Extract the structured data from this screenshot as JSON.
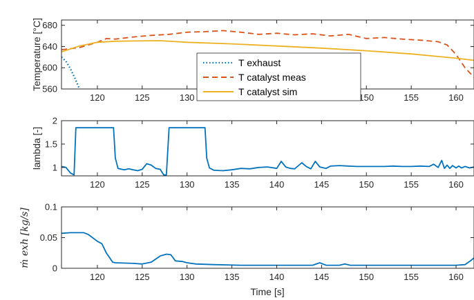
{
  "chart_data": [
    {
      "type": "line",
      "ylabel": "Temperature [°C]",
      "xlim": [
        116,
        162
      ],
      "ylim": [
        560,
        690
      ],
      "xticks": [
        120,
        125,
        130,
        135,
        140,
        145,
        150,
        155,
        160
      ],
      "yticks": [
        560,
        600,
        640,
        680
      ],
      "legend_position": "bottom-center",
      "series": [
        {
          "name": "T exhaust",
          "color": "#0072BD",
          "style": "dotted",
          "points": [
            [
              116,
              620
            ],
            [
              116.5,
              612
            ],
            [
              117,
              598
            ],
            [
              117.5,
              580
            ],
            [
              118,
              560
            ]
          ]
        },
        {
          "name": "T catalyst meas",
          "color": "#D95319",
          "style": "dashed",
          "points": [
            [
              116,
              634
            ],
            [
              118,
              638
            ],
            [
              120,
              648
            ],
            [
              121,
              655
            ],
            [
              122,
              654
            ],
            [
              124,
              658
            ],
            [
              126,
              661
            ],
            [
              128,
              663
            ],
            [
              130,
              667
            ],
            [
              132,
              668
            ],
            [
              134,
              670
            ],
            [
              136,
              667
            ],
            [
              138,
              663
            ],
            [
              140,
              665
            ],
            [
              142,
              662
            ],
            [
              144,
              664
            ],
            [
              146,
              660
            ],
            [
              148,
              663
            ],
            [
              150,
              655
            ],
            [
              152,
              657
            ],
            [
              154,
              654
            ],
            [
              156,
              652
            ],
            [
              158,
              649
            ],
            [
              159,
              643
            ],
            [
              160,
              625
            ],
            [
              161,
              600
            ],
            [
              162,
              582
            ]
          ]
        },
        {
          "name": "T catalyst sim",
          "color": "#EDB120",
          "style": "solid",
          "points": [
            [
              116,
              630
            ],
            [
              118,
              641
            ],
            [
              120,
              648
            ],
            [
              122,
              650
            ],
            [
              124,
              650.5
            ],
            [
              127,
              651
            ],
            [
              130,
              648
            ],
            [
              135,
              645
            ],
            [
              140,
              641
            ],
            [
              145,
              637
            ],
            [
              150,
              632
            ],
            [
              155,
              626
            ],
            [
              160,
              618
            ],
            [
              162,
              614
            ]
          ]
        }
      ]
    },
    {
      "type": "line",
      "ylabel": "lambda [-]",
      "xlim": [
        116,
        162
      ],
      "ylim": [
        0.82,
        2
      ],
      "xticks": [
        120,
        125,
        130,
        135,
        140,
        145,
        150,
        155,
        160
      ],
      "yticks": [
        1,
        1.5,
        2
      ],
      "series": [
        {
          "color": "#0072BD",
          "style": "solid",
          "points": [
            [
              116,
              1.02
            ],
            [
              116.5,
              1.0
            ],
            [
              117,
              0.88
            ],
            [
              117.4,
              0.84
            ],
            [
              117.6,
              1.85
            ],
            [
              120,
              1.85
            ],
            [
              121.8,
              1.85
            ],
            [
              122,
              1.2
            ],
            [
              122.3,
              0.98
            ],
            [
              123,
              0.95
            ],
            [
              123.5,
              0.97
            ],
            [
              124,
              0.95
            ],
            [
              124.5,
              0.93
            ],
            [
              125,
              0.96
            ],
            [
              125.5,
              1.08
            ],
            [
              126,
              1.05
            ],
            [
              126.5,
              0.98
            ],
            [
              127,
              0.96
            ],
            [
              127.4,
              0.84
            ],
            [
              127.7,
              0.84
            ],
            [
              128,
              1.85
            ],
            [
              132,
              1.85
            ],
            [
              132.2,
              1.2
            ],
            [
              132.5,
              0.99
            ],
            [
              133,
              0.94
            ],
            [
              134,
              0.93
            ],
            [
              135,
              0.95
            ],
            [
              136,
              0.98
            ],
            [
              137,
              0.97
            ],
            [
              138,
              1.0
            ],
            [
              139,
              1.01
            ],
            [
              140,
              0.98
            ],
            [
              140.5,
              1.13
            ],
            [
              141,
              1.01
            ],
            [
              141.5,
              0.98
            ],
            [
              142,
              0.97
            ],
            [
              142.8,
              1.1
            ],
            [
              143.3,
              1.02
            ],
            [
              143.8,
              0.97
            ],
            [
              144.3,
              1.13
            ],
            [
              144.8,
              1.01
            ],
            [
              145.5,
              0.98
            ],
            [
              146,
              1.03
            ],
            [
              147,
              1.04
            ],
            [
              148,
              1.03
            ],
            [
              149,
              1.02
            ],
            [
              150,
              1.02
            ],
            [
              151,
              1.02
            ],
            [
              152,
              1.02
            ],
            [
              153,
              1.03
            ],
            [
              154,
              1.02
            ],
            [
              155,
              1.02
            ],
            [
              156,
              1.03
            ],
            [
              157,
              1.02
            ],
            [
              157.5,
              1.07
            ],
            [
              158,
              1.0
            ],
            [
              158.4,
              1.15
            ],
            [
              158.7,
              0.98
            ],
            [
              159,
              1.05
            ],
            [
              159.3,
              0.98
            ],
            [
              159.6,
              1.04
            ],
            [
              160,
              0.99
            ],
            [
              160.3,
              1.03
            ],
            [
              160.6,
              0.99
            ],
            [
              161,
              1.02
            ],
            [
              161.5,
              0.99
            ],
            [
              162,
              1.01
            ]
          ]
        }
      ]
    },
    {
      "type": "line",
      "ylabel": "ṁ exh [kg/s]",
      "xlabel": "Time [s]",
      "xlim": [
        116,
        162
      ],
      "ylim": [
        0,
        0.1
      ],
      "xticks": [
        120,
        125,
        130,
        135,
        140,
        145,
        150,
        155,
        160
      ],
      "yticks": [
        0,
        0.05,
        0.1
      ],
      "series": [
        {
          "color": "#0072BD",
          "style": "solid",
          "points": [
            [
              116,
              0.057
            ],
            [
              117,
              0.058
            ],
            [
              118.5,
              0.058
            ],
            [
              119,
              0.055
            ],
            [
              120,
              0.044
            ],
            [
              120.5,
              0.04
            ],
            [
              121,
              0.025
            ],
            [
              121.7,
              0.01
            ],
            [
              122,
              0.009
            ],
            [
              124,
              0.008
            ],
            [
              125,
              0.007
            ],
            [
              126,
              0.01
            ],
            [
              127,
              0.02
            ],
            [
              127.7,
              0.023
            ],
            [
              128.2,
              0.022
            ],
            [
              128.7,
              0.012
            ],
            [
              129.5,
              0.011
            ],
            [
              130,
              0.009
            ],
            [
              131,
              0.007
            ],
            [
              133,
              0.006
            ],
            [
              136,
              0.005
            ],
            [
              140,
              0.005
            ],
            [
              144,
              0.005
            ],
            [
              144.8,
              0.009
            ],
            [
              145.5,
              0.005
            ],
            [
              147,
              0.005
            ],
            [
              147.6,
              0.007
            ],
            [
              148.2,
              0.005
            ],
            [
              150,
              0.005
            ],
            [
              155,
              0.005
            ],
            [
              160,
              0.005
            ],
            [
              161,
              0.006
            ],
            [
              161.6,
              0.012
            ],
            [
              162,
              0.017
            ]
          ]
        }
      ]
    }
  ]
}
